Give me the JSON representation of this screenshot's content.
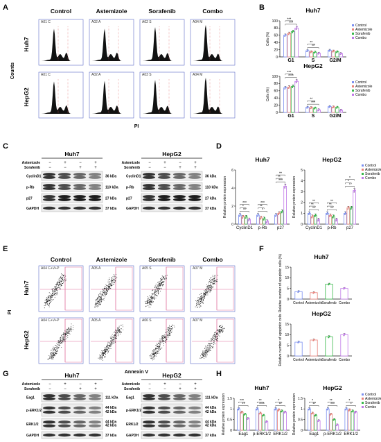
{
  "panel_letters": [
    "A",
    "B",
    "C",
    "D",
    "E",
    "F",
    "G",
    "H"
  ],
  "panelA": {
    "columns": [
      "Control",
      "Astemizole",
      "Sorafenib",
      "Combo"
    ],
    "rows": [
      "Huh7",
      "HepG2"
    ],
    "ylabel": "Counts",
    "xlabel": "PI",
    "gate_labels": [
      [
        "A01 C",
        "A02 A",
        "A02 S",
        "A04 M"
      ],
      [
        "A01 C",
        "A02 A",
        "A03 S",
        "A04 M"
      ]
    ]
  },
  "panelE": {
    "columns": [
      "Control",
      "Astemizole",
      "Sorafenib",
      "Combo"
    ],
    "rows": [
      "Huh7",
      "HepG2"
    ],
    "ylabel": "PI",
    "xlabel": "Annexin V",
    "gate_labels": [
      [
        "A04 C+V+P",
        "A05 A",
        "A05 S",
        "A07 M"
      ],
      [
        "A04 C+V+P",
        "A05 A",
        "A06 S",
        "A07 M"
      ]
    ]
  },
  "western": {
    "treatment_labels": [
      "Astemizole",
      "Sorafenib"
    ],
    "signs": [
      [
        "−",
        "+",
        "−",
        "+"
      ],
      [
        "−",
        "−",
        "+",
        "+"
      ]
    ],
    "panelC": {
      "cells": [
        "Huh7",
        "HepG2"
      ],
      "proteins": [
        "CyclinD1",
        "p-Rb",
        "p27",
        "GAPDH"
      ],
      "kda": [
        "36 kDa",
        "110 kDa",
        "27 kDa",
        "37 kDa"
      ]
    },
    "panelG": {
      "cells": [
        "Huh7",
        "HepG2"
      ],
      "proteins": [
        "Eag1",
        "p-ERK1/2",
        "ERK1/2",
        "GAPDH"
      ],
      "kda": [
        "111 kDa",
        "44 kDa",
        "42 kDa",
        "44 kDa",
        "42 kDa",
        "37 kDa"
      ]
    }
  },
  "legend": [
    "Control",
    "Astemizole",
    "Sorafenib",
    "Combo"
  ],
  "colors": {
    "Control": "#7b8ff0",
    "Astemizole": "#e8827a",
    "Sorafenib": "#37b84a",
    "Combo": "#c078e8"
  },
  "chart_data": [
    {
      "panel": "B",
      "type": "bar",
      "title": "Huh7",
      "ylabel": "Cells (%)",
      "categories": [
        "G1",
        "S",
        "G2/M"
      ],
      "ylim": [
        0,
        100
      ],
      "yticks": [
        0,
        20,
        40,
        60,
        80,
        100
      ],
      "series": [
        {
          "name": "Control",
          "values": [
            60,
            17,
            18
          ]
        },
        {
          "name": "Astemizole",
          "values": [
            65,
            14,
            16
          ]
        },
        {
          "name": "Sorafenib",
          "values": [
            70,
            13,
            14
          ]
        },
        {
          "name": "Combo",
          "values": [
            80,
            10,
            9
          ]
        }
      ],
      "significance": [
        "***",
        "***",
        "**",
        "**"
      ]
    },
    {
      "panel": "B",
      "type": "bar",
      "title": "HepG2",
      "ylabel": "Cells (%)",
      "categories": [
        "G1",
        "S",
        "G2/M"
      ],
      "ylim": [
        0,
        100
      ],
      "yticks": [
        0,
        20,
        40,
        60,
        80,
        100
      ],
      "series": [
        {
          "name": "Control",
          "values": [
            68,
            14,
            16
          ]
        },
        {
          "name": "Astemizole",
          "values": [
            70,
            13,
            15
          ]
        },
        {
          "name": "Sorafenib",
          "values": [
            72,
            12,
            14
          ]
        },
        {
          "name": "Combo",
          "values": [
            86,
            7,
            6
          ]
        }
      ],
      "significance": [
        "****",
        "***",
        "***",
        "**"
      ]
    },
    {
      "panel": "D",
      "type": "bar",
      "title": "Huh7",
      "ylabel": "Relative protein expression",
      "categories": [
        "CyclinD1",
        "p-Rb",
        "p27"
      ],
      "ylim": [
        0,
        6
      ],
      "yticks": [
        0,
        2,
        4,
        6
      ],
      "series": [
        {
          "name": "Control",
          "values": [
            1.0,
            1.0,
            1.0
          ]
        },
        {
          "name": "Astemizole",
          "values": [
            0.8,
            0.7,
            1.2
          ]
        },
        {
          "name": "Sorafenib",
          "values": [
            0.8,
            0.6,
            1.4
          ]
        },
        {
          "name": "Combo",
          "values": [
            0.5,
            0.3,
            4.2
          ]
        }
      ],
      "significance": [
        "**",
        "*",
        "***",
        "*",
        "**",
        "***",
        "***",
        "**",
        "**"
      ]
    },
    {
      "panel": "D",
      "type": "bar",
      "title": "HepG2",
      "ylabel": "Relative protein expression",
      "categories": [
        "CyclinD1",
        "p-Rb",
        "p27"
      ],
      "ylim": [
        0,
        5
      ],
      "yticks": [
        0,
        1,
        2,
        3,
        4,
        5
      ],
      "series": [
        {
          "name": "Control",
          "values": [
            1.0,
            1.0,
            1.0
          ]
        },
        {
          "name": "Astemizole",
          "values": [
            0.7,
            0.8,
            1.5
          ]
        },
        {
          "name": "Sorafenib",
          "values": [
            0.8,
            0.7,
            1.5
          ]
        },
        {
          "name": "Combo",
          "values": [
            0.4,
            0.4,
            3.1
          ]
        }
      ],
      "significance": [
        "**",
        "**",
        "**",
        "**",
        "**",
        "**",
        "*",
        "*",
        "*"
      ]
    },
    {
      "panel": "F",
      "type": "bar",
      "title": "Huh7",
      "ylabel": "Relative number of apoptotic cells (%)",
      "categories": [
        "Control",
        "Astemizole",
        "Sorafenib",
        "Combo"
      ],
      "ylim": [
        0,
        15
      ],
      "yticks": [
        0,
        5,
        10,
        15
      ],
      "values": [
        3.5,
        3.0,
        7.0,
        5.0
      ]
    },
    {
      "panel": "F",
      "type": "bar",
      "title": "HepG2",
      "ylabel": "Relative number of apoptotic cells",
      "categories": [
        "Control",
        "Astemizole",
        "Sorafenib",
        "Combo"
      ],
      "ylim": [
        0,
        15
      ],
      "yticks": [
        0,
        5,
        10,
        15
      ],
      "values": [
        6.5,
        7.5,
        9.0,
        10.0
      ]
    },
    {
      "panel": "H",
      "type": "bar",
      "title": "Huh7",
      "ylabel": "Relative protein expression",
      "categories": [
        "Eag1",
        "p-ERK1/2",
        "ERK1/2"
      ],
      "ylim": [
        0,
        1.5
      ],
      "yticks": [
        0.0,
        0.5,
        1.0,
        1.5
      ],
      "series": [
        {
          "name": "Control",
          "values": [
            1.0,
            1.0,
            1.0
          ]
        },
        {
          "name": "Astemizole",
          "values": [
            0.85,
            0.8,
            0.95
          ]
        },
        {
          "name": "Sorafenib",
          "values": [
            0.75,
            0.7,
            0.9
          ]
        },
        {
          "name": "Combo",
          "values": [
            0.55,
            0.4,
            0.85
          ]
        }
      ],
      "significance": [
        "**",
        "***",
        "****",
        "**",
        "**",
        "*"
      ]
    },
    {
      "panel": "H",
      "type": "bar",
      "title": "HepG2",
      "ylabel": "Relative protein expression",
      "categories": [
        "Eag1",
        "p-ERK1/2",
        "ERK1/2"
      ],
      "ylim": [
        0,
        1.5
      ],
      "yticks": [
        0.0,
        0.5,
        1.0,
        1.5
      ],
      "series": [
        {
          "name": "Control",
          "values": [
            1.0,
            1.0,
            1.0
          ]
        },
        {
          "name": "Astemizole",
          "values": [
            0.8,
            0.75,
            0.95
          ]
        },
        {
          "name": "Sorafenib",
          "values": [
            0.7,
            0.5,
            0.9
          ]
        },
        {
          "name": "Combo",
          "values": [
            0.45,
            0.25,
            0.85
          ]
        }
      ],
      "significance": [
        "**",
        "*",
        "***",
        "**",
        "*",
        "*"
      ]
    }
  ]
}
